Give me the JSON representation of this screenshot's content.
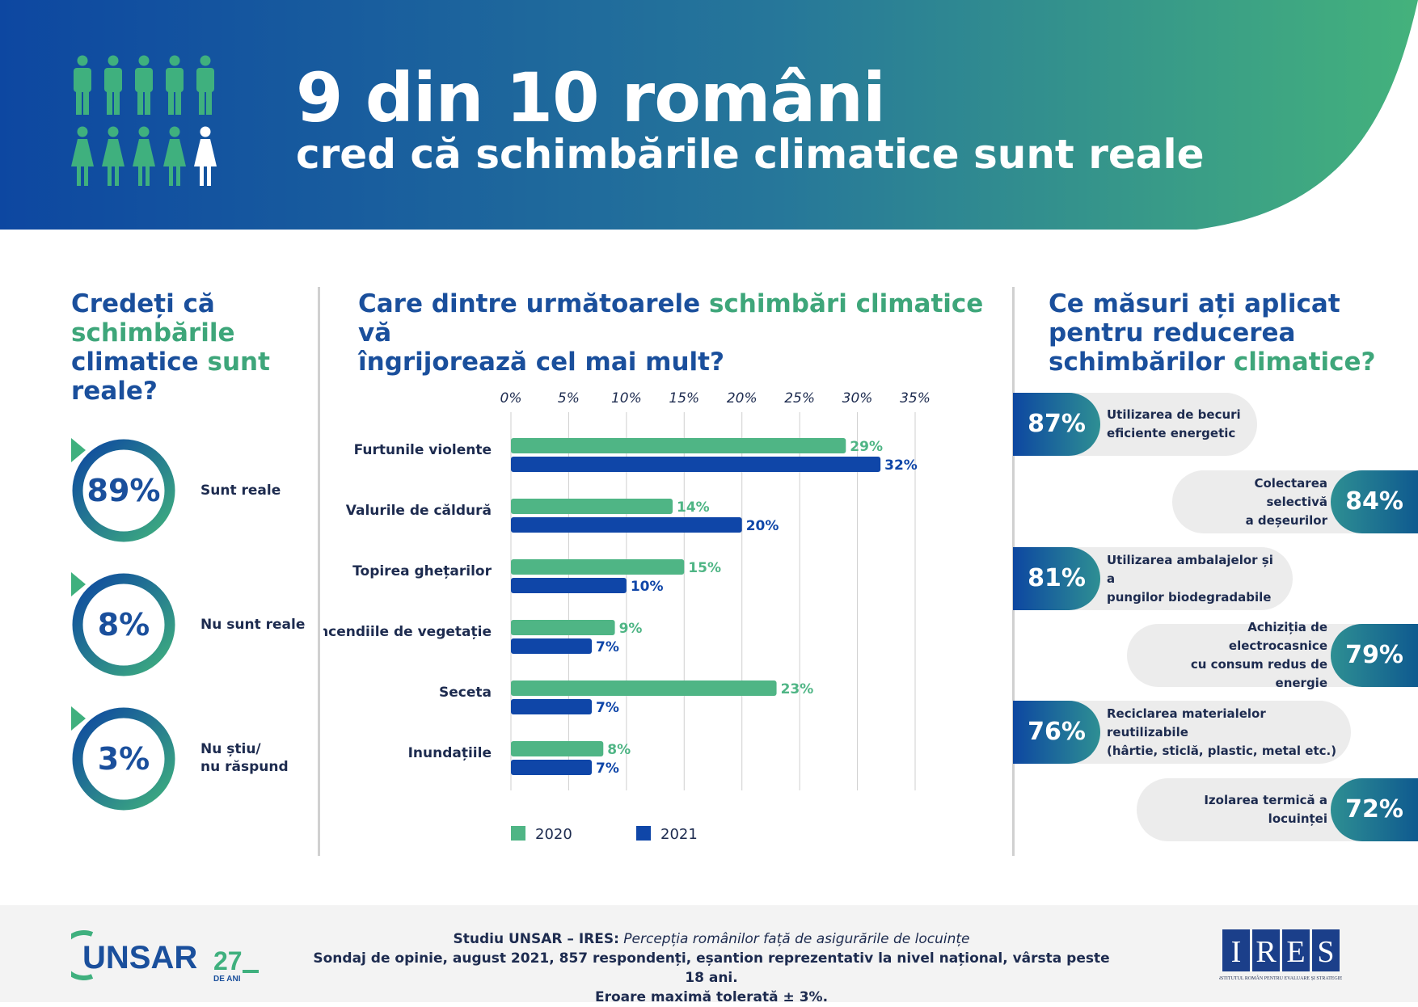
{
  "header": {
    "title_line1": "9 din 10 români",
    "title_line2": "cred că schimbările climatice sunt reale",
    "people_icon": "people-icon-grid",
    "colors": {
      "blue": "#0d47a1",
      "green": "#3fb07e"
    }
  },
  "left": {
    "question_part1": "Credeți că",
    "question_part2": "schimbările",
    "question_part3": "climatice",
    "question_part4": "sunt",
    "question_part5": "reale?",
    "answers": [
      {
        "value": "89%",
        "label": "Sunt reale"
      },
      {
        "value": "8%",
        "label": "Nu sunt reale"
      },
      {
        "value": "3%",
        "label_line1": "Nu știu/",
        "label_line2": "nu răspund"
      }
    ]
  },
  "center": {
    "question_part1": "Care dintre următoarele",
    "question_part2": "schimbări climatice",
    "question_part3": "vă",
    "question_part4": "îngrijorează cel mai mult?"
  },
  "chart_data": {
    "type": "bar",
    "orientation": "horizontal",
    "categories": [
      "Furtunile violente",
      "Valurile de căldură",
      "Topirea ghețarilor",
      "Incendiile de vegetație",
      "Seceta",
      "Inundațiile"
    ],
    "series": [
      {
        "name": "2020",
        "color": "#4fb585",
        "values": [
          29,
          14,
          15,
          9,
          23,
          8
        ]
      },
      {
        "name": "2021",
        "color": "#0f46a8",
        "values": [
          32,
          20,
          10,
          7,
          7,
          7
        ]
      }
    ],
    "xticks": [
      "0%",
      "5%",
      "10%",
      "15%",
      "20%",
      "25%",
      "30%",
      "35%"
    ],
    "xlim": [
      0,
      35
    ],
    "grid": true,
    "legend_position": "bottom-left"
  },
  "right": {
    "question_part1": "Ce măsuri ați aplicat",
    "question_part2": "pentru reducerea",
    "question_part3": "schimbărilor",
    "question_part4": "climatice?",
    "measures": [
      {
        "pct": "87%",
        "line1": "Utilizarea de becuri",
        "line2": "eficiente energetic",
        "side": "left"
      },
      {
        "pct": "84%",
        "line1": "Colectarea selectivă",
        "line2": "a deșeurilor",
        "side": "right"
      },
      {
        "pct": "81%",
        "line1": "Utilizarea ambalajelor și a",
        "line2": "pungilor biodegradabile",
        "side": "left"
      },
      {
        "pct": "79%",
        "line1": "Achiziția de electrocasnice",
        "line2": "cu consum redus de energie",
        "side": "right"
      },
      {
        "pct": "76%",
        "line1": "Reciclarea materialelor reutilizabile",
        "line2": "(hârtie, sticlă, plastic, metal etc.)",
        "side": "left"
      },
      {
        "pct": "72%",
        "line1": "Izolarea termică a locuinței",
        "line2": "",
        "side": "right"
      }
    ]
  },
  "footer": {
    "study_bold": "Studiu UNSAR – IRES:",
    "study_italic": "Percepția românilor față de asigurările de locuințe",
    "line2": "Sondaj de opinie, august 2021, 857 respondenți, eșantion reprezentativ la nivel național, vârsta peste 18 ani.",
    "line3": "Eroare maximă tolerată ± 3%.",
    "unsar_logo": "UNSAR",
    "unsar_years": "27",
    "unsar_years_sub": "DE ANI",
    "ires_logo": "IRES",
    "ires_sub": "INSTITUTUL ROMÂN PENTRU EVALUARE ȘI STRATEGIE"
  }
}
